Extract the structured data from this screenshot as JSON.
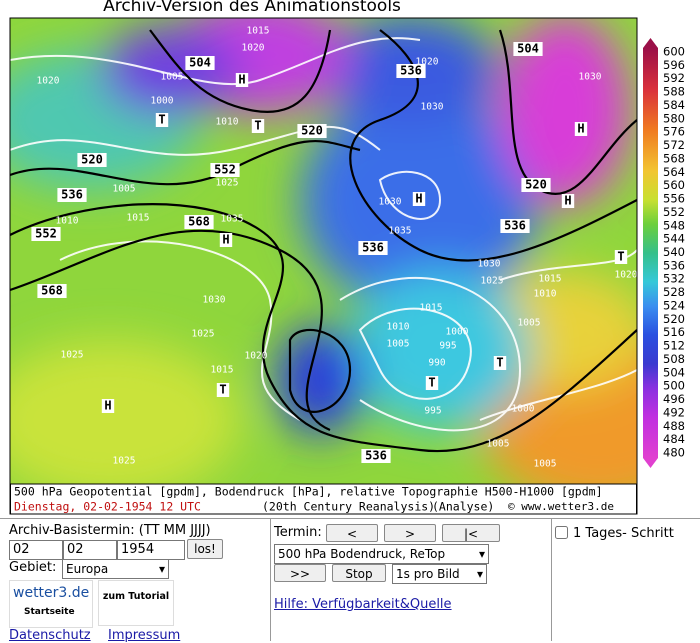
{
  "header": {
    "title": "Archiv-Version des Animationstools"
  },
  "map": {
    "colorbar_labels": [
      "600",
      "596",
      "592",
      "588",
      "584",
      "580",
      "576",
      "572",
      "568",
      "564",
      "560",
      "556",
      "552",
      "548",
      "544",
      "540",
      "536",
      "532",
      "528",
      "524",
      "520",
      "516",
      "512",
      "508",
      "504",
      "500",
      "496",
      "492",
      "488",
      "484",
      "480"
    ],
    "labels": [
      "1015",
      "1020",
      "504",
      "H",
      "1020",
      "1005",
      "1000",
      "T",
      "1010",
      "T",
      "520",
      "536",
      "1020",
      "1030",
      "504",
      "H",
      "1030",
      "520",
      "H",
      "520",
      "536",
      "1005",
      "552",
      "1025",
      "1010",
      "1015",
      "552",
      "568",
      "1035",
      "H",
      "568",
      "1030",
      "1025",
      "1025",
      "H",
      "1015",
      "T",
      "1020",
      "1025",
      "H",
      "1030",
      "536",
      "1035",
      "536",
      "1030",
      "1025",
      "1015",
      "1010",
      "1005",
      "1000",
      "995",
      "990",
      "T",
      "T",
      "995",
      "1005",
      "1000",
      "536",
      "1005",
      "T",
      "1020",
      "1015",
      "1010",
      "1005"
    ],
    "caption": {
      "line1": "500 hPa Geopotential [gpdm], Bodendruck [hPa], relative Topographie H500-H1000 [gpdm]",
      "date": "Dienstag, 02-02-1954  12 UTC",
      "source": "(20th Century Reanalysis)",
      "kind": "(Analyse)",
      "copyright": "© www.wetter3.de"
    }
  },
  "form": {
    "left": {
      "label": "Archiv-Basistermin: (TT MM JJJJ)",
      "day": "02",
      "month": "02",
      "year": "1954",
      "go": "los!",
      "region_label": "Gebiet:",
      "region": "Europa",
      "logo": "wetter3.de",
      "logo_sub": "Startseite",
      "tutorial": "zum Tutorial",
      "links": [
        "Datenschutz",
        "Impressum"
      ]
    },
    "middle": {
      "label": "Termin:",
      "prev": "<",
      "next": ">",
      "first": "|<",
      "product": "500 hPa Bodendruck, ReTop",
      "play": ">>",
      "stop": "Stop",
      "speed": "1s pro Bild",
      "help": "Hilfe: Verfügbarkeit&Quelle"
    },
    "right": {
      "step": "1 Tages- Schritt"
    }
  }
}
